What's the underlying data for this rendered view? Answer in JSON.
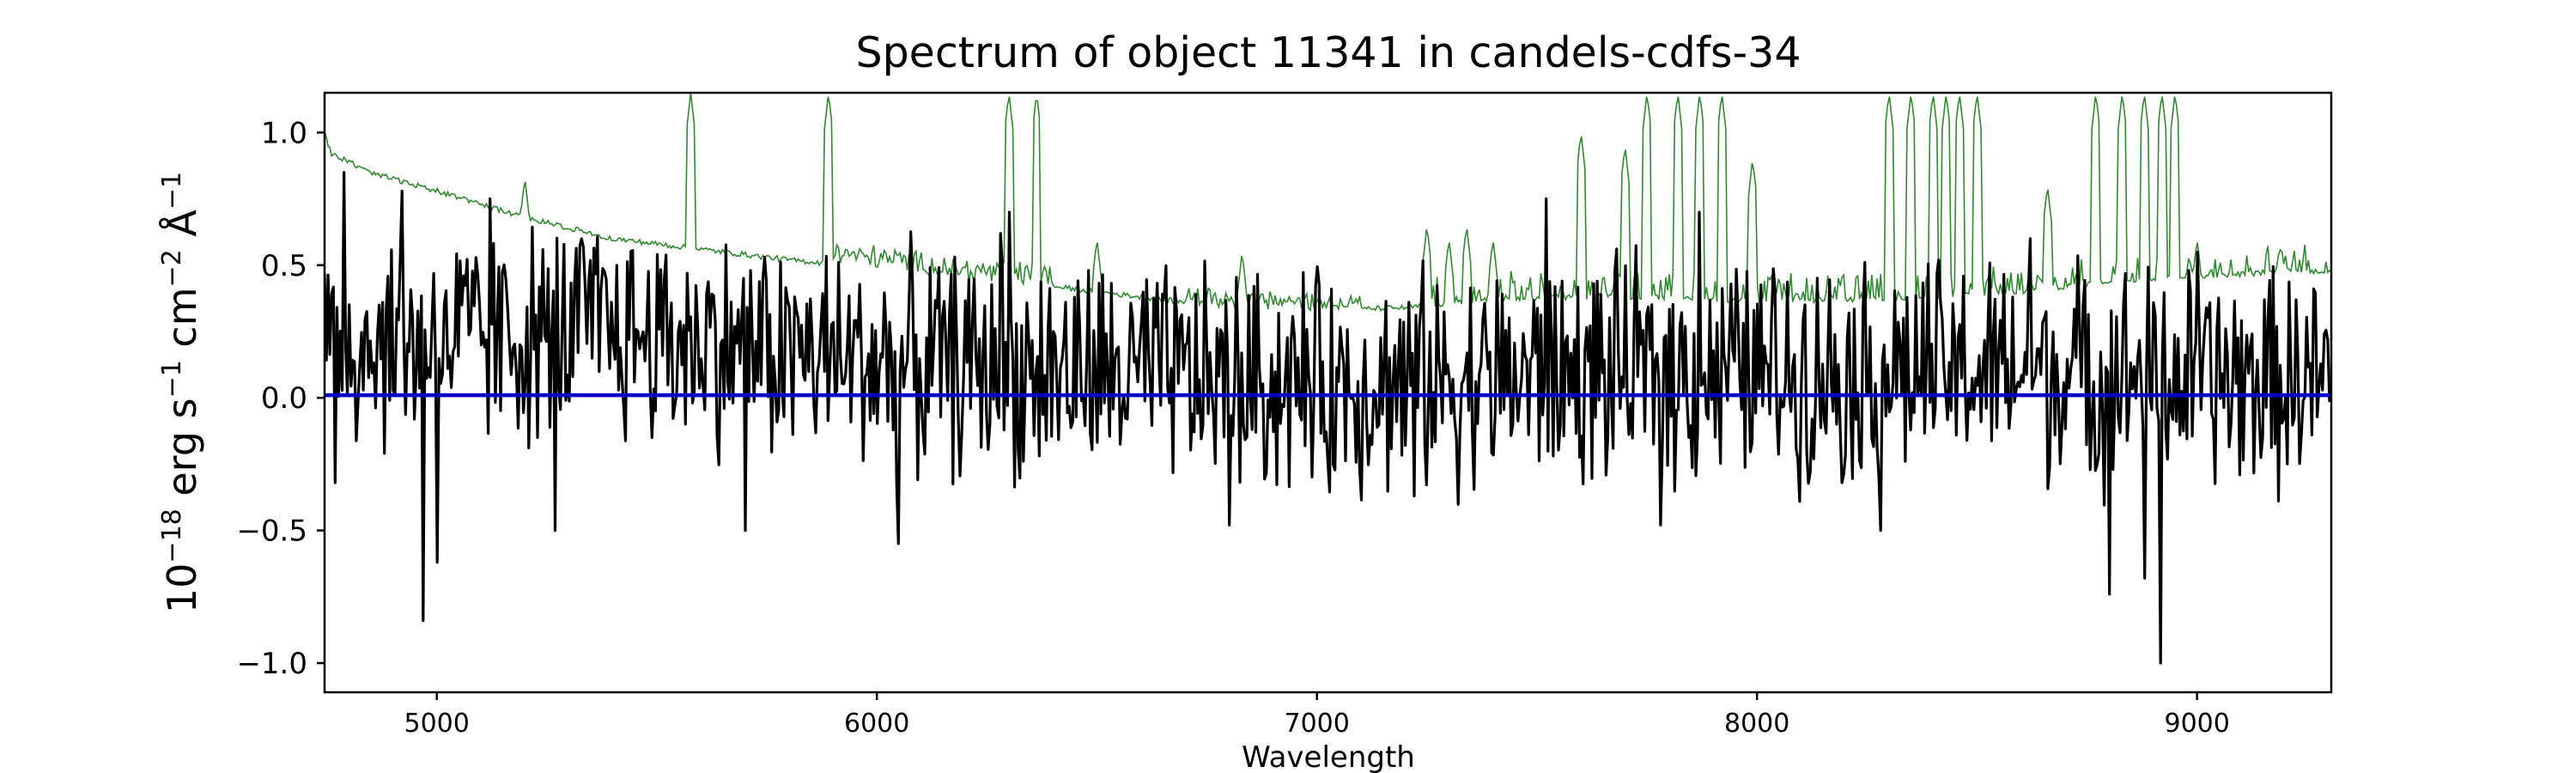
{
  "chart_data": {
    "type": "line",
    "title": "Spectrum of object 11341 in candels-cdfs-34",
    "xlabel": "Wavelength",
    "ylabel": {
      "base": "10",
      "exp": "−18",
      "unit1": " erg s",
      "exp1": "−1",
      "unit2": " cm",
      "exp2": "−2",
      "unit3": " Å",
      "exp3": "−1"
    },
    "xlim": [
      4745,
      9305
    ],
    "ylim": [
      -1.11,
      1.15
    ],
    "x_ticks": [
      5000,
      6000,
      7000,
      8000,
      9000
    ],
    "x_tick_labels": [
      "5000",
      "6000",
      "7000",
      "8000",
      "9000"
    ],
    "y_ticks": [
      -1.0,
      -0.5,
      0.0,
      0.5,
      1.0
    ],
    "y_tick_labels": [
      "−1.0",
      "−0.5",
      "0.0",
      "0.5",
      "1.0"
    ],
    "grid": false,
    "series": [
      {
        "role": "flux",
        "color": "#000000",
        "x_start": 4745,
        "x_step": 4,
        "baseline_anchors": [
          [
            4745,
            0.2
          ],
          [
            5400,
            0.25
          ],
          [
            5900,
            0.15
          ],
          [
            6400,
            0.1
          ],
          [
            7000,
            0.05
          ],
          [
            7800,
            0.1
          ],
          [
            8600,
            0.1
          ],
          [
            9305,
            0.05
          ]
        ],
        "noise_amplitude": 0.5,
        "spikes": [
          [
            4770,
            -0.32
          ],
          [
            4790,
            0.85
          ],
          [
            4920,
            0.78
          ],
          [
            4968,
            -0.84
          ],
          [
            5000,
            -0.62
          ],
          [
            5120,
            0.75
          ],
          [
            5270,
            -0.5
          ],
          [
            5330,
            0.6
          ],
          [
            5700,
            -0.5
          ],
          [
            6050,
            -0.55
          ],
          [
            6280,
            0.62
          ],
          [
            6300,
            0.7
          ],
          [
            6800,
            -0.48
          ],
          [
            7220,
            -0.37
          ],
          [
            7520,
            0.75
          ],
          [
            7780,
            -0.48
          ],
          [
            7870,
            0.7
          ],
          [
            8280,
            -0.5
          ],
          [
            8620,
            0.6
          ],
          [
            8800,
            -0.74
          ],
          [
            8880,
            -0.68
          ],
          [
            8918,
            -1.0
          ],
          [
            9000,
            0.55
          ]
        ]
      },
      {
        "role": "model",
        "color": "#0000cc",
        "values": [
          [
            4745,
            0.01
          ],
          [
            9305,
            0.01
          ]
        ]
      },
      {
        "role": "error",
        "color": "#2e8b2e",
        "continuum": [
          [
            4745,
            1.0
          ],
          [
            4760,
            0.92
          ],
          [
            4850,
            0.85
          ],
          [
            5000,
            0.78
          ],
          [
            5200,
            0.68
          ],
          [
            5400,
            0.6
          ],
          [
            5600,
            0.56
          ],
          [
            5800,
            0.52
          ],
          [
            6000,
            0.49
          ],
          [
            6200,
            0.44
          ],
          [
            6400,
            0.42
          ],
          [
            6600,
            0.38
          ],
          [
            6800,
            0.34
          ],
          [
            7000,
            0.33
          ],
          [
            7200,
            0.34
          ],
          [
            7400,
            0.37
          ],
          [
            7600,
            0.38
          ],
          [
            7800,
            0.38
          ],
          [
            8000,
            0.36
          ],
          [
            8200,
            0.37
          ],
          [
            8400,
            0.38
          ],
          [
            8600,
            0.4
          ],
          [
            8800,
            0.44
          ],
          [
            9000,
            0.46
          ],
          [
            9305,
            0.48
          ]
        ],
        "skylines": [
          [
            5200,
            0.83
          ],
          [
            5577,
            1.15
          ],
          [
            5890,
            1.15
          ],
          [
            6050,
            0.55
          ],
          [
            6300,
            1.15
          ],
          [
            6363,
            1.15
          ],
          [
            6500,
            0.6
          ],
          [
            6830,
            0.55
          ],
          [
            7250,
            0.65
          ],
          [
            7300,
            0.6
          ],
          [
            7340,
            0.65
          ],
          [
            7400,
            0.6
          ],
          [
            7600,
            1.0
          ],
          [
            7700,
            0.95
          ],
          [
            7750,
            1.15
          ],
          [
            7820,
            1.15
          ],
          [
            7870,
            1.15
          ],
          [
            7920,
            1.15
          ],
          [
            7990,
            0.9
          ],
          [
            8300,
            1.15
          ],
          [
            8350,
            1.15
          ],
          [
            8400,
            1.15
          ],
          [
            8430,
            1.15
          ],
          [
            8460,
            1.15
          ],
          [
            8500,
            1.15
          ],
          [
            8660,
            0.8
          ],
          [
            8770,
            1.15
          ],
          [
            8830,
            1.15
          ],
          [
            8880,
            1.15
          ],
          [
            8920,
            1.15
          ],
          [
            8950,
            1.15
          ],
          [
            9000,
            0.6
          ],
          [
            9200,
            0.55
          ]
        ]
      }
    ]
  }
}
